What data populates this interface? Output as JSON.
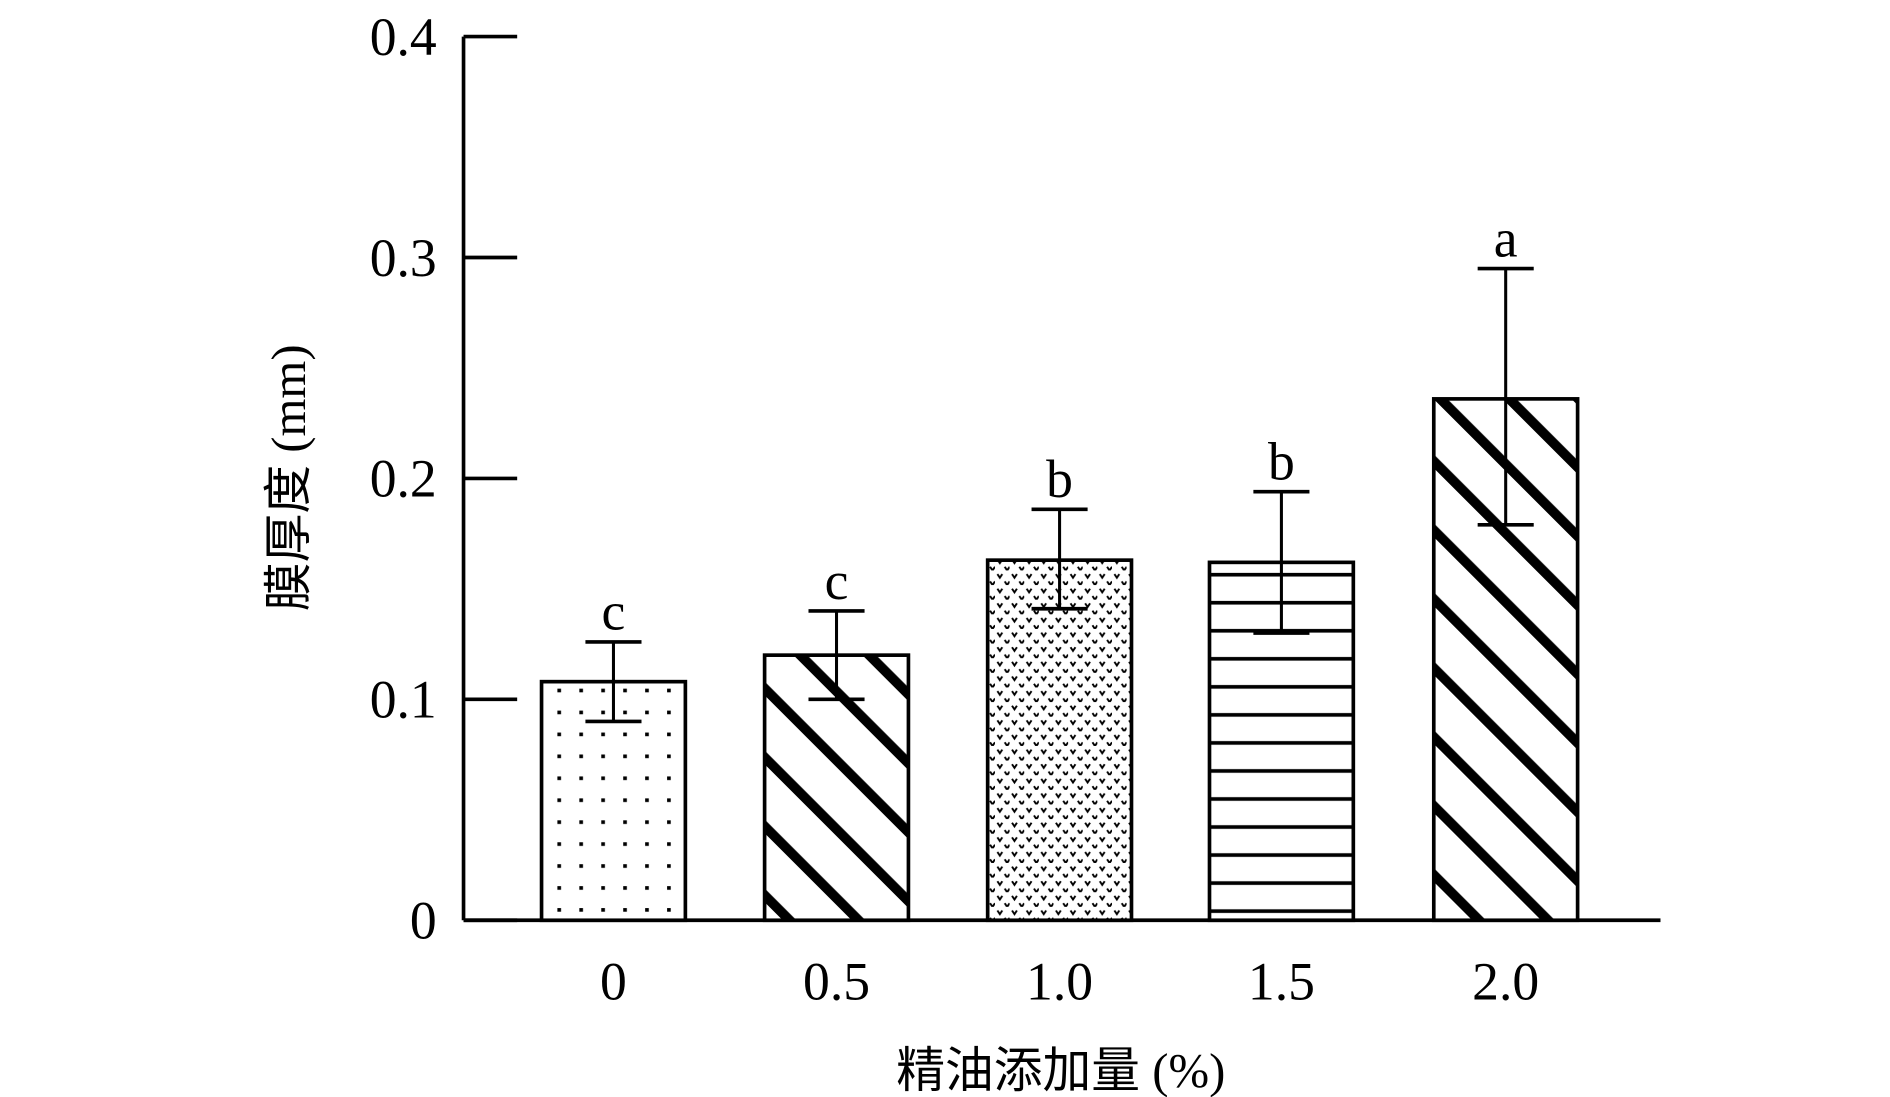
{
  "chart_data": {
    "type": "bar",
    "title": "",
    "xlabel": "精油添加量 (%)",
    "ylabel": "膜厚度 (mm)",
    "categories": [
      "0",
      "0.5",
      "1.0",
      "1.5",
      "2.0"
    ],
    "values": [
      0.108,
      0.12,
      0.163,
      0.162,
      0.236
    ],
    "error_upper": [
      0.126,
      0.14,
      0.186,
      0.194,
      0.295
    ],
    "error_lower": [
      0.09,
      0.1,
      0.141,
      0.13,
      0.179
    ],
    "significance_labels": [
      "c",
      "c",
      "b",
      "b",
      "a"
    ],
    "patterns": [
      "dots",
      "thick-diagonal",
      "dense-dots",
      "horizontal-lines",
      "thick-diagonal"
    ],
    "ylim": [
      0,
      0.4
    ],
    "yticks": [
      0,
      0.1,
      0.2,
      0.3,
      0.4
    ],
    "ytick_labels": [
      "0",
      "0.1",
      "0.2",
      "0.3",
      "0.4"
    ],
    "grid": false,
    "legend": "none"
  }
}
